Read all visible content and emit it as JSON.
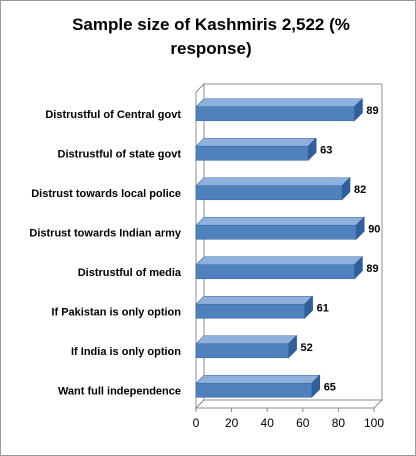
{
  "chart_data": {
    "type": "bar",
    "orientation": "horizontal",
    "title": "Sample size of Kashmiris 2,522 (% response)",
    "categories": [
      "Distrustful of Central govt",
      "Distrustful of state govt",
      "Distrust towards local police",
      "Distrust towards Indian army",
      "Distrustful of media",
      "If Pakistan is only option",
      "If India is only option",
      "Want full independence"
    ],
    "values": [
      89,
      63,
      82,
      90,
      89,
      61,
      52,
      65
    ],
    "xlim": [
      0,
      100
    ],
    "xticks": [
      0,
      20,
      40,
      60,
      80,
      100
    ],
    "grid": false,
    "legend": "none",
    "bar_color": "#4f81bd",
    "style": "3d"
  }
}
